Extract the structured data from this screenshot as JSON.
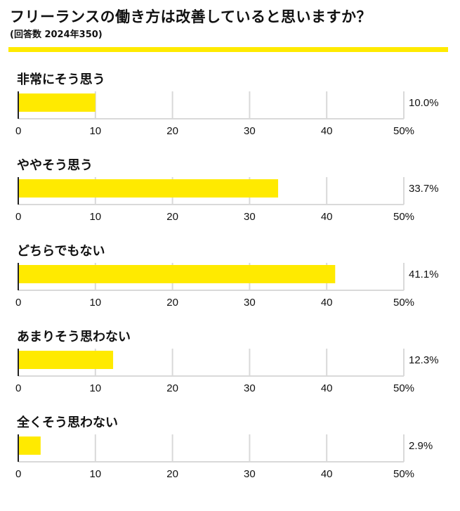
{
  "header": {
    "title": "フリーランスの働き方は改善していると思いますか？",
    "subtitle": "(回答数 2024年350)"
  },
  "colors": {
    "bar": "#ffea00",
    "accent_rule": "#ffea00",
    "grid": "#d9d9d9",
    "axis": "#222222"
  },
  "chart_data": {
    "type": "bar",
    "orientation": "horizontal",
    "title": "フリーランスの働き方は改善していると思いますか？",
    "subtitle": "(回答数 2024年350)",
    "categories": [
      "非常にそう思う",
      "ややそう思う",
      "どちらでもない",
      "あまりそう思わない",
      "全くそう思わない"
    ],
    "values": [
      10.0,
      33.7,
      41.1,
      12.3,
      2.9
    ],
    "value_labels": [
      "10.0%",
      "33.7%",
      "41.1%",
      "12.3%",
      "2.9%"
    ],
    "unit": "%",
    "xlim": [
      0,
      50
    ],
    "ticks": [
      0,
      10,
      20,
      30,
      40,
      50
    ],
    "tick_labels": [
      "0",
      "10",
      "20",
      "30",
      "40",
      "50%"
    ],
    "grid": true,
    "legend": "none"
  }
}
